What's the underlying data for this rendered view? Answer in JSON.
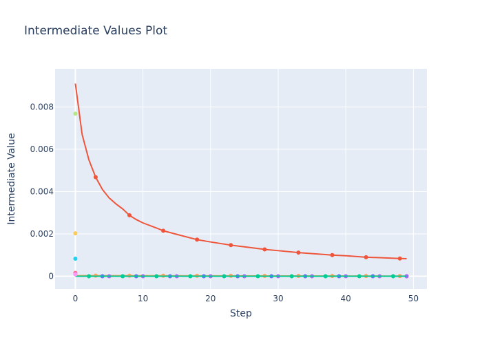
{
  "chart_data": {
    "type": "line",
    "title": "Intermediate Values Plot",
    "xlabel": "Step",
    "ylabel": "Intermediate Value",
    "xlim": [
      -3,
      52
    ],
    "ylim": [
      -0.0006,
      0.0098
    ],
    "xticks": [
      0,
      10,
      20,
      30,
      40,
      50
    ],
    "yticks": [
      0,
      0.002,
      0.004,
      0.006,
      0.008
    ],
    "ytick_labels": [
      "0",
      "0.002",
      "0.004",
      "0.006",
      "0.008"
    ],
    "grid": true,
    "legend": "none",
    "series": [
      {
        "color": "#ef553b",
        "x": [
          0,
          1,
          2,
          3,
          4,
          5,
          6,
          7,
          8,
          9,
          10,
          12,
          13,
          15,
          18,
          20,
          23,
          25,
          28,
          30,
          33,
          35,
          38,
          40,
          43,
          45,
          48,
          49
        ],
        "values": [
          0.0091,
          0.0067,
          0.0055,
          0.00468,
          0.0041,
          0.0037,
          0.00342,
          0.00318,
          0.00288,
          0.00268,
          0.00252,
          0.00228,
          0.00215,
          0.00198,
          0.00173,
          0.00162,
          0.00147,
          0.00139,
          0.00127,
          0.00121,
          0.00112,
          0.00107,
          0.001,
          0.00097,
          0.0009,
          0.00088,
          0.00084,
          0.00083
        ],
        "markers_x": [
          3,
          8,
          13,
          18,
          23,
          28,
          33,
          38,
          43,
          48
        ]
      },
      {
        "color": "#fea15a",
        "x": [
          0,
          49
        ],
        "values": [
          3e-05,
          1e-05
        ],
        "markers_x": [
          3,
          8,
          13,
          18,
          23,
          28,
          33,
          38,
          43,
          48
        ]
      },
      {
        "color": "#636efa",
        "x": [
          0,
          49
        ],
        "values": [
          0.0,
          0.0
        ],
        "markers_x": [
          4,
          9,
          14,
          19,
          24,
          29,
          34,
          39,
          44,
          49
        ]
      },
      {
        "color": "#ab63fa",
        "x": [
          0,
          49
        ],
        "values": [
          0.0,
          0.0
        ],
        "markers_x": [
          5,
          10,
          15,
          20,
          25,
          30,
          35,
          40,
          45,
          49
        ]
      },
      {
        "color": "#00cc96",
        "x": [
          0,
          49
        ],
        "values": [
          0.0,
          0.0
        ],
        "markers_x": [
          2,
          7,
          12,
          17,
          22,
          27,
          32,
          37,
          42,
          47
        ]
      },
      {
        "color": "#b6e880",
        "x": [
          0
        ],
        "values": [
          0.00768
        ],
        "markers_x": [
          0
        ]
      },
      {
        "color": "#fecb52",
        "x": [
          0
        ],
        "values": [
          0.00203
        ],
        "markers_x": [
          0
        ]
      },
      {
        "color": "#19d3f3",
        "x": [
          0
        ],
        "values": [
          0.00083
        ],
        "markers_x": [
          0
        ]
      },
      {
        "color": "#ff6692",
        "x": [
          0
        ],
        "values": [
          0.00016
        ],
        "markers_x": [
          0
        ]
      },
      {
        "color": "#ff97ff",
        "x": [
          0
        ],
        "values": [
          9e-05
        ],
        "markers_x": [
          0
        ]
      }
    ]
  }
}
